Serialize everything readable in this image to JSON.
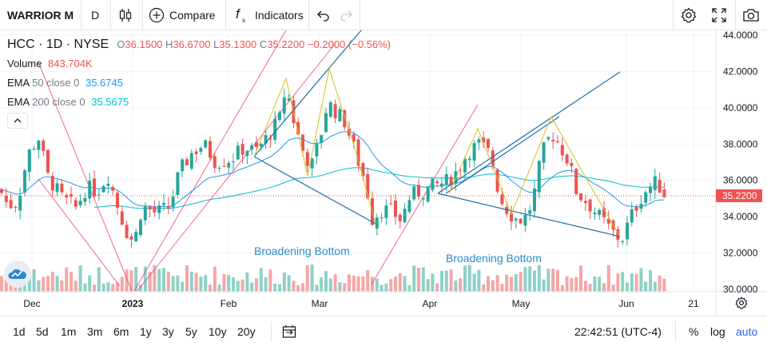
{
  "toolbar": {
    "symbol": "WARRIOR M",
    "interval": "D",
    "compare_label": "Compare",
    "indicators_label": "Indicators"
  },
  "legend": {
    "ticker": "HCC · 1D · NYSE",
    "o_label": "O",
    "o_value": "36.1500",
    "h_label": "H",
    "h_value": "36.6700",
    "l_label": "L",
    "l_value": "35.1300",
    "c_label": "C",
    "c_value": "35.2200",
    "change": "−0.2000 (−0.56%)",
    "volume_label": "Volume",
    "volume_value": "843.704K",
    "ema50_label": "EMA",
    "ema50_params": "50 close 0",
    "ema50_value": "35.6745",
    "ema200_label": "EMA",
    "ema200_params": "200 close 0",
    "ema200_value": "35.5675"
  },
  "annotations": {
    "pattern1": "Broadening Bottom",
    "pattern2": "Broadening Bottom"
  },
  "price_axis": {
    "ticks": [
      "44.0000",
      "42.0000",
      "40.0000",
      "38.0000",
      "36.0000",
      "34.0000",
      "32.0000",
      "30.0000"
    ],
    "last_price_label": "35.2200"
  },
  "time_axis": {
    "ticks": [
      "Dec",
      "2023",
      "Feb",
      "Mar",
      "Apr",
      "May",
      "Jun",
      "21"
    ]
  },
  "bottombar": {
    "ranges": [
      "1d",
      "5d",
      "1m",
      "3m",
      "6m",
      "1y",
      "3y",
      "5y",
      "10y",
      "20y"
    ],
    "clock": "22:42:51 (UTC-4)",
    "percent_label": "%",
    "log_label": "log",
    "auto_label": "auto"
  },
  "colors": {
    "up": "#26a69a",
    "down": "#ef5350",
    "ema50": "#2196f3",
    "ema200": "#00bcd4",
    "accent": "#2962ff",
    "pattern_line": "#1e6fa8",
    "channel": "#f23d7a",
    "zigzag": "#d4c21c"
  },
  "chart_data": {
    "type": "candlestick",
    "symbol": "HCC",
    "interval": "1D",
    "exchange": "NYSE",
    "ylim": [
      30,
      44
    ],
    "last_close": 35.22,
    "series": [
      {
        "name": "EMA 50 close 0",
        "last": 35.6745
      },
      {
        "name": "EMA 200 close 0",
        "last": 35.5675
      }
    ]
  }
}
